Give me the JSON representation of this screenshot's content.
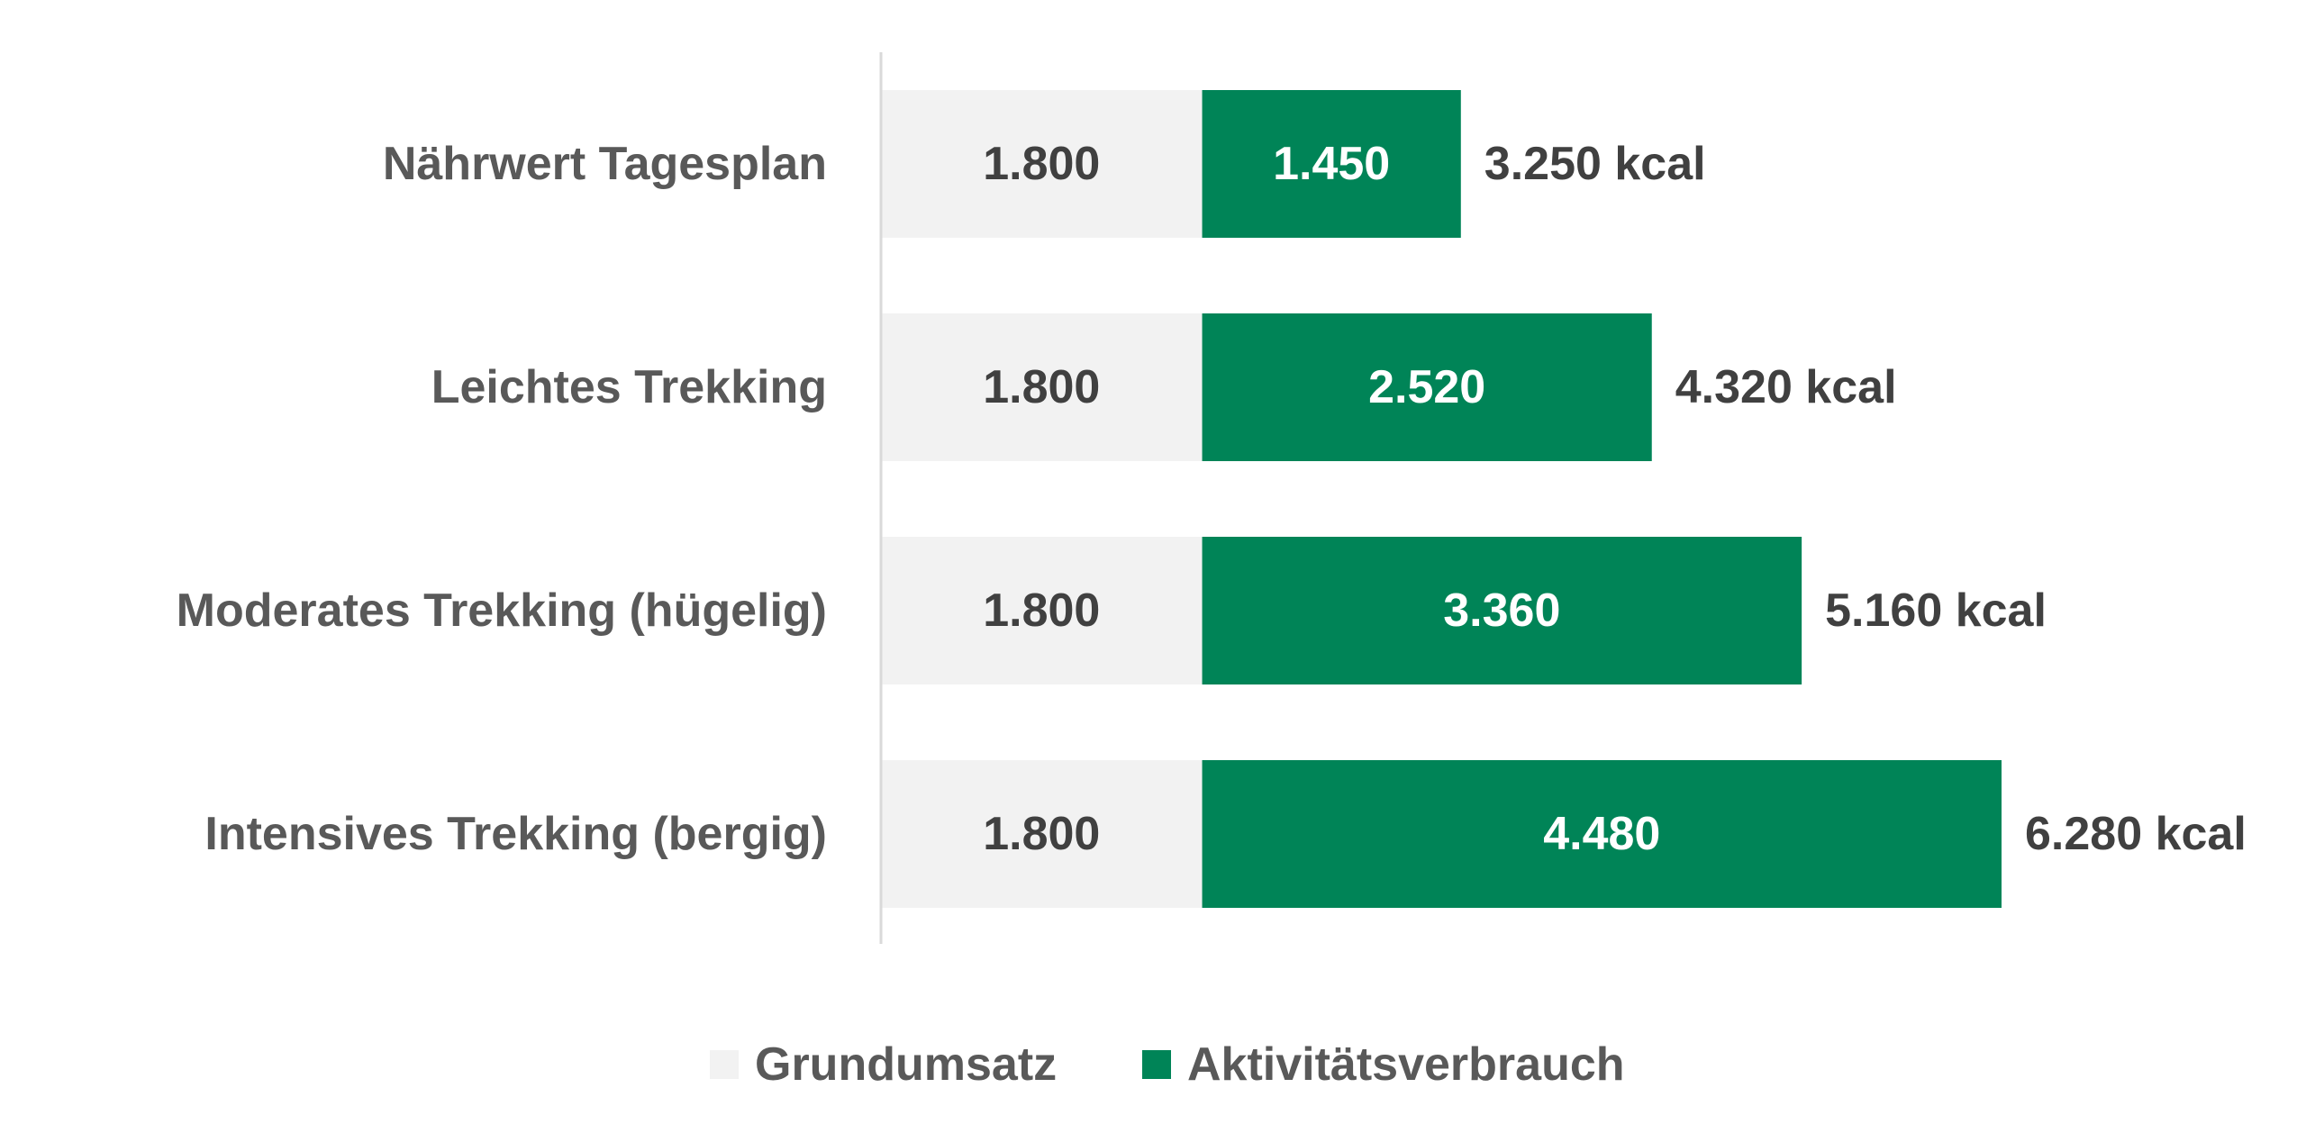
{
  "chart_data": {
    "type": "bar",
    "orientation": "horizontal",
    "stacked": true,
    "categories": [
      "Nährwert Tagesplan",
      "Leichtes Trekking",
      "Moderates Trekking (hügelig)",
      "Intensives Trekking (bergig)"
    ],
    "series": [
      {
        "name": "Grundumsatz",
        "color": "#f2f2f2",
        "values": [
          1800,
          1800,
          1800,
          1800
        ],
        "labels": [
          "1.800",
          "1.800",
          "1.800",
          "1.800"
        ]
      },
      {
        "name": "Aktivitätsverbrauch",
        "color": "#008457",
        "values": [
          1450,
          2520,
          3360,
          4480
        ],
        "labels": [
          "1.450",
          "2.520",
          "3.360",
          "4.480"
        ]
      }
    ],
    "totals": [
      3250,
      4320,
      5160,
      6280
    ],
    "total_labels": [
      "3.250 kcal",
      "4.320 kcal",
      "5.160 kcal",
      "6.280 kcal"
    ],
    "xlim": [
      0,
      7000
    ],
    "grid": false,
    "legend_position": "bottom",
    "colors": {
      "axis": "#d9d9d9"
    }
  }
}
